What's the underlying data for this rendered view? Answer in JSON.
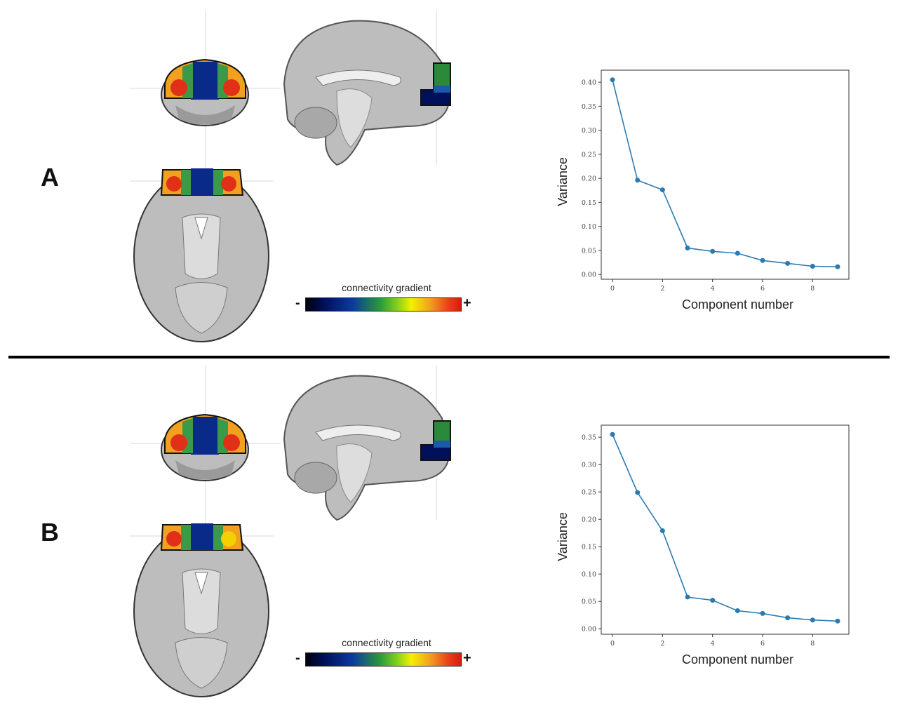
{
  "colorbar": {
    "title": "connectivity gradient",
    "minus": "-",
    "plus": "+"
  },
  "panels": [
    {
      "letter": "A"
    },
    {
      "letter": "B"
    }
  ],
  "chart_data": [
    {
      "type": "line",
      "panel": "A",
      "xlabel": "Component number",
      "ylabel": "Variance",
      "x": [
        0,
        1,
        2,
        3,
        4,
        5,
        6,
        7,
        8,
        9
      ],
      "xticks": [
        "0",
        "2",
        "4",
        "6",
        "8"
      ],
      "xtick_values": [
        0,
        2,
        4,
        6,
        8
      ],
      "yticks": [
        "0.00",
        "0.05",
        "0.10",
        "0.15",
        "0.20",
        "0.25",
        "0.30",
        "0.35",
        "0.40"
      ],
      "ytick_values": [
        0,
        0.05,
        0.1,
        0.15,
        0.2,
        0.25,
        0.3,
        0.35,
        0.4
      ],
      "values": [
        0.405,
        0.196,
        0.176,
        0.055,
        0.048,
        0.044,
        0.029,
        0.023,
        0.017,
        0.016
      ],
      "xlim": [
        -0.45,
        9.45
      ],
      "ylim": [
        -0.01,
        0.425
      ],
      "color": "#2b7bb0",
      "grid": false
    },
    {
      "type": "line",
      "panel": "B",
      "xlabel": "Component number",
      "ylabel": "Variance",
      "x": [
        0,
        1,
        2,
        3,
        4,
        5,
        6,
        7,
        8,
        9
      ],
      "xticks": [
        "0",
        "2",
        "4",
        "6",
        "8"
      ],
      "xtick_values": [
        0,
        2,
        4,
        6,
        8
      ],
      "yticks": [
        "0.00",
        "0.05",
        "0.10",
        "0.15",
        "0.20",
        "0.25",
        "0.30",
        "0.35"
      ],
      "ytick_values": [
        0,
        0.05,
        0.1,
        0.15,
        0.2,
        0.25,
        0.3,
        0.35
      ],
      "values": [
        0.355,
        0.249,
        0.179,
        0.058,
        0.052,
        0.033,
        0.028,
        0.02,
        0.016,
        0.014
      ],
      "xlim": [
        -0.45,
        9.45
      ],
      "ylim": [
        -0.01,
        0.372
      ],
      "color": "#2b7bb0",
      "grid": false
    }
  ]
}
